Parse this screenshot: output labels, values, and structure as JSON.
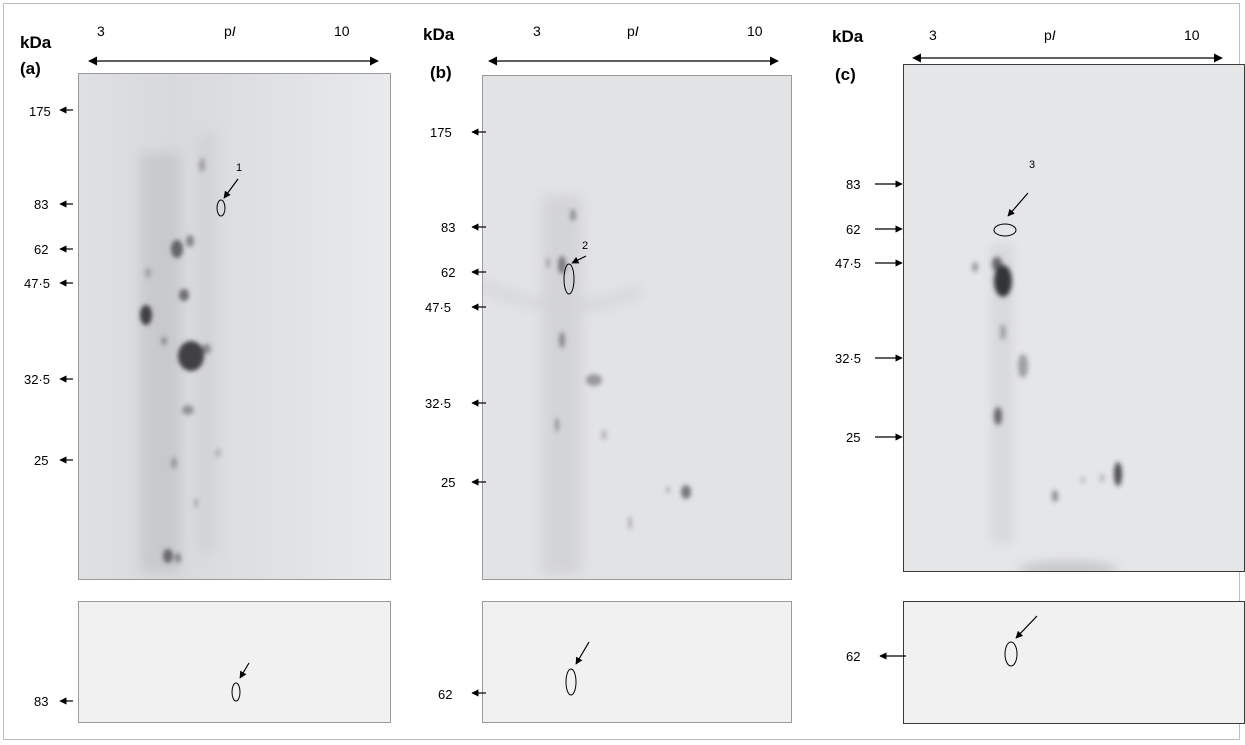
{
  "panels": [
    {
      "id": "a",
      "label": "(a)",
      "kda_label": "kDa",
      "ph_low": "3",
      "ph_axis_label": "pI",
      "ph_high": "10",
      "markers": [
        "175",
        "83",
        "62",
        "47·5",
        "32·5",
        "25"
      ],
      "spot_number": "1",
      "western_marker": "83"
    },
    {
      "id": "b",
      "label": "(b)",
      "kda_label": "kDa",
      "ph_low": "3",
      "ph_axis_label": "pI",
      "ph_high": "10",
      "markers": [
        "175",
        "83",
        "62",
        "47·5",
        "32·5",
        "25"
      ],
      "spot_number": "2",
      "western_marker": "62"
    },
    {
      "id": "c",
      "label": "(c)",
      "kda_label": "kDa",
      "ph_low": "3",
      "ph_axis_label": "pI",
      "ph_high": "10",
      "markers": [
        "83",
        "62",
        "47·5",
        "32·5",
        "25"
      ],
      "spot_number": "3",
      "western_marker": "62"
    }
  ],
  "colors": {
    "gel_background": "#e4e5e7",
    "gel_spot": "#4a4b4e",
    "western_background": "#f1f1f1",
    "border": "#9a9a9a"
  }
}
